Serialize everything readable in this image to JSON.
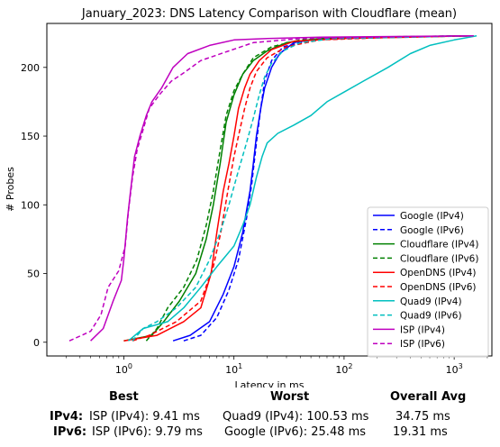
{
  "chart_data": {
    "type": "line",
    "title": "January_2023: DNS Latency Comparison with Cloudflare (mean)",
    "xlabel": "Latency in ms",
    "ylabel": "# Probes",
    "xscale": "log",
    "xlim": [
      0.2,
      2200
    ],
    "ylim": [
      -10,
      232
    ],
    "xticks": [
      1,
      10,
      100,
      1000
    ],
    "xtick_labels": [
      "10^0",
      "10^1",
      "10^2",
      "10^3"
    ],
    "yticks": [
      0,
      50,
      100,
      150,
      200
    ],
    "legend_position": "lower-right",
    "series": [
      {
        "name": "Google (IPv4)",
        "color": "#0000ff",
        "dash": "solid",
        "points": [
          [
            2.8,
            1
          ],
          [
            4,
            5
          ],
          [
            6,
            15
          ],
          [
            8,
            35
          ],
          [
            10,
            55
          ],
          [
            12,
            80
          ],
          [
            14,
            110
          ],
          [
            15,
            130
          ],
          [
            16,
            150
          ],
          [
            17.5,
            170
          ],
          [
            19,
            185
          ],
          [
            22,
            200
          ],
          [
            26,
            210
          ],
          [
            35,
            218
          ],
          [
            60,
            221
          ],
          [
            200,
            222
          ],
          [
            1500,
            223
          ]
        ]
      },
      {
        "name": "Google (IPv6)",
        "color": "#0000ff",
        "dash": "dashed",
        "points": [
          [
            3.5,
            1
          ],
          [
            5,
            5
          ],
          [
            7,
            18
          ],
          [
            9,
            38
          ],
          [
            11,
            60
          ],
          [
            13,
            90
          ],
          [
            14.5,
            115
          ],
          [
            16,
            145
          ],
          [
            17.5,
            170
          ],
          [
            19,
            190
          ],
          [
            22,
            205
          ],
          [
            28,
            215
          ],
          [
            50,
            220
          ],
          [
            300,
            222
          ],
          [
            1400,
            223
          ]
        ]
      },
      {
        "name": "Cloudflare (IPv4)",
        "color": "#008000",
        "dash": "solid",
        "points": [
          [
            1,
            1
          ],
          [
            1.8,
            5
          ],
          [
            2.3,
            15
          ],
          [
            3.2,
            30
          ],
          [
            4.5,
            50
          ],
          [
            5.6,
            75
          ],
          [
            6.5,
            100
          ],
          [
            7.5,
            130
          ],
          [
            8.5,
            160
          ],
          [
            10,
            180
          ],
          [
            12,
            195
          ],
          [
            15,
            205
          ],
          [
            20,
            212
          ],
          [
            30,
            218
          ],
          [
            60,
            221
          ],
          [
            300,
            222
          ],
          [
            1500,
            223
          ]
        ]
      },
      {
        "name": "Cloudflare (IPv6)",
        "color": "#008000",
        "dash": "dashed",
        "points": [
          [
            1.6,
            1
          ],
          [
            2,
            10
          ],
          [
            2.5,
            25
          ],
          [
            3.5,
            40
          ],
          [
            4.6,
            60
          ],
          [
            5.6,
            85
          ],
          [
            6.5,
            110
          ],
          [
            7.5,
            140
          ],
          [
            8.5,
            165
          ],
          [
            10,
            183
          ],
          [
            12,
            195
          ],
          [
            15,
            207
          ],
          [
            22,
            215
          ],
          [
            40,
            220
          ],
          [
            150,
            222
          ],
          [
            1300,
            223
          ]
        ]
      },
      {
        "name": "OpenDNS (IPv4)",
        "color": "#ff0000",
        "dash": "solid",
        "points": [
          [
            1,
            1
          ],
          [
            2,
            5
          ],
          [
            3.5,
            15
          ],
          [
            5,
            25
          ],
          [
            6.2,
            50
          ],
          [
            7,
            80
          ],
          [
            8,
            110
          ],
          [
            9,
            130
          ],
          [
            10,
            150
          ],
          [
            11,
            170
          ],
          [
            12.5,
            185
          ],
          [
            14,
            195
          ],
          [
            17,
            205
          ],
          [
            22,
            213
          ],
          [
            35,
            219
          ],
          [
            100,
            221
          ],
          [
            400,
            222
          ],
          [
            1500,
            223
          ]
        ]
      },
      {
        "name": "OpenDNS (IPv6)",
        "color": "#ff0000",
        "dash": "dashed",
        "points": [
          [
            1.2,
            1
          ],
          [
            1.7,
            5
          ],
          [
            3,
            15
          ],
          [
            5,
            30
          ],
          [
            6.5,
            55
          ],
          [
            7.6,
            80
          ],
          [
            8.8,
            110
          ],
          [
            10,
            135
          ],
          [
            11,
            150
          ],
          [
            12.5,
            170
          ],
          [
            14,
            185
          ],
          [
            16,
            197
          ],
          [
            20,
            207
          ],
          [
            30,
            215
          ],
          [
            60,
            220
          ],
          [
            300,
            222
          ],
          [
            1500,
            223
          ]
        ]
      },
      {
        "name": "Quad9 (IPv4)",
        "color": "#00bfbf",
        "dash": "solid",
        "points": [
          [
            1.1,
            1
          ],
          [
            1.5,
            10
          ],
          [
            2.5,
            15
          ],
          [
            3.5,
            25
          ],
          [
            5,
            40
          ],
          [
            7,
            55
          ],
          [
            10,
            70
          ],
          [
            12,
            85
          ],
          [
            14,
            100
          ],
          [
            16,
            120
          ],
          [
            18,
            135
          ],
          [
            20,
            145
          ],
          [
            25,
            152
          ],
          [
            35,
            158
          ],
          [
            50,
            165
          ],
          [
            70,
            175
          ],
          [
            100,
            182
          ],
          [
            150,
            190
          ],
          [
            250,
            200
          ],
          [
            400,
            210
          ],
          [
            600,
            216
          ],
          [
            1000,
            220
          ],
          [
            1600,
            223
          ]
        ]
      },
      {
        "name": "Quad9 (IPv6)",
        "color": "#00bfbf",
        "dash": "dashed",
        "points": [
          [
            1.2,
            1
          ],
          [
            1.5,
            10
          ],
          [
            2,
            15
          ],
          [
            3,
            25
          ],
          [
            4.5,
            40
          ],
          [
            6,
            60
          ],
          [
            7.5,
            80
          ],
          [
            9,
            100
          ],
          [
            11,
            125
          ],
          [
            13,
            145
          ],
          [
            15,
            163
          ],
          [
            17,
            180
          ],
          [
            19,
            193
          ],
          [
            22,
            203
          ],
          [
            28,
            212
          ],
          [
            40,
            218
          ],
          [
            80,
            221
          ],
          [
            400,
            222
          ],
          [
            1500,
            223
          ]
        ]
      },
      {
        "name": "ISP (IPv4)",
        "color": "#bf00bf",
        "dash": "solid",
        "points": [
          [
            0.5,
            1
          ],
          [
            0.65,
            10
          ],
          [
            0.8,
            30
          ],
          [
            0.95,
            45
          ],
          [
            1,
            60
          ],
          [
            1.08,
            90
          ],
          [
            1.15,
            110
          ],
          [
            1.25,
            135
          ],
          [
            1.4,
            150
          ],
          [
            1.6,
            165
          ],
          [
            1.8,
            175
          ],
          [
            2.2,
            185
          ],
          [
            2.8,
            200
          ],
          [
            3.8,
            210
          ],
          [
            6,
            216
          ],
          [
            10,
            220
          ],
          [
            20,
            221
          ],
          [
            60,
            222
          ],
          [
            1500,
            223
          ]
        ]
      },
      {
        "name": "ISP (IPv6)",
        "color": "#bf00bf",
        "dash": "dashed",
        "points": [
          [
            0.32,
            1
          ],
          [
            0.5,
            8
          ],
          [
            0.62,
            20
          ],
          [
            0.72,
            40
          ],
          [
            0.9,
            52
          ],
          [
            1.03,
            70
          ],
          [
            1.1,
            95
          ],
          [
            1.2,
            120
          ],
          [
            1.32,
            140
          ],
          [
            1.5,
            155
          ],
          [
            1.7,
            170
          ],
          [
            2.1,
            180
          ],
          [
            2.7,
            190
          ],
          [
            3.5,
            196
          ],
          [
            5,
            205
          ],
          [
            9,
            212
          ],
          [
            15,
            218
          ],
          [
            40,
            221
          ],
          [
            200,
            222
          ],
          [
            1500,
            223
          ]
        ]
      }
    ]
  },
  "stats": {
    "header_best": "Best",
    "header_worst": "Worst",
    "header_avg": "Overall Avg",
    "rows": [
      {
        "label": "IPv4:",
        "best": "ISP (IPv4): 9.41 ms",
        "worst": "Quad9 (IPv4): 100.53 ms",
        "avg": "34.75 ms"
      },
      {
        "label": "IPv6:",
        "best": "ISP (IPv6): 9.79 ms",
        "worst": "Google (IPv6): 25.48 ms",
        "avg": "19.31 ms"
      }
    ]
  }
}
